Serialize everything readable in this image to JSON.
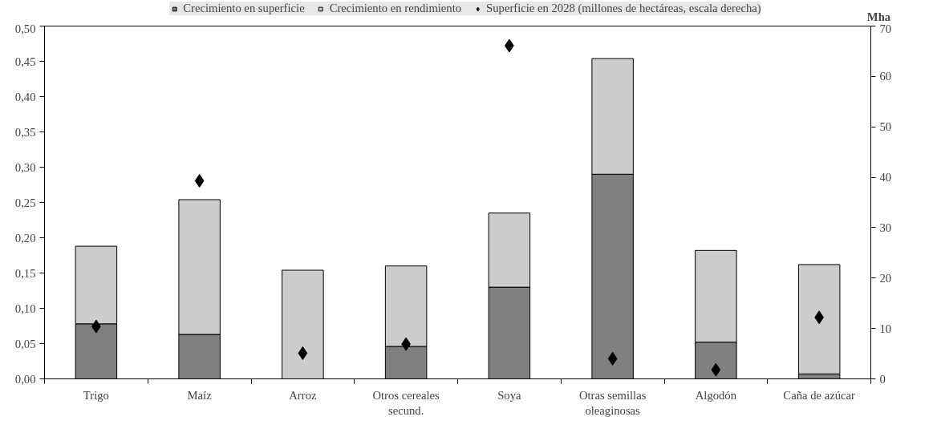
{
  "chart_data": {
    "type": "bar",
    "stacked": true,
    "categories": [
      "Trigo",
      "Maíz",
      "Arroz",
      "Otros cereales\nsecund.",
      "Soya",
      "Otras semillas\noleaginosas",
      "Algodón",
      "Caña de azúcar"
    ],
    "series": [
      {
        "name": "Crecimiento en superficie",
        "color": "#808080",
        "values": [
          0.078,
          0.063,
          0.0,
          0.046,
          0.13,
          0.29,
          0.052,
          0.007
        ]
      },
      {
        "name": "Crecimiento en rendimiento",
        "color": "#cccccc",
        "values": [
          0.11,
          0.191,
          0.154,
          0.114,
          0.105,
          0.164,
          0.13,
          0.155
        ]
      },
      {
        "name": "Superficie en 2028 (millones de hectáreas, escala derecha)",
        "type": "scatter",
        "axis": "y2",
        "marker": "diamond",
        "color": "#000000",
        "values": [
          10.4,
          39.3,
          5.1,
          6.9,
          66.1,
          4.0,
          1.8,
          12.2
        ]
      }
    ],
    "ylim": [
      0,
      0.5
    ],
    "yticks": [
      {
        "value": 0,
        "label": "0,00"
      },
      {
        "value": 0.05,
        "label": "0,05"
      },
      {
        "value": 0.1,
        "label": "0,10"
      },
      {
        "value": 0.15,
        "label": "0,15"
      },
      {
        "value": 0.2,
        "label": "0,20"
      },
      {
        "value": 0.25,
        "label": "0,25"
      },
      {
        "value": 0.3,
        "label": "0,30"
      },
      {
        "value": 0.35,
        "label": "0,35"
      },
      {
        "value": 0.4,
        "label": "0,40"
      },
      {
        "value": 0.45,
        "label": "0,45"
      },
      {
        "value": 0.5,
        "label": "0,50"
      }
    ],
    "y2lim": [
      0,
      70
    ],
    "y2ticks": [
      0,
      10,
      20,
      30,
      40,
      50,
      60,
      70
    ],
    "y2label": "Mha",
    "grid": false,
    "legend": "top"
  }
}
